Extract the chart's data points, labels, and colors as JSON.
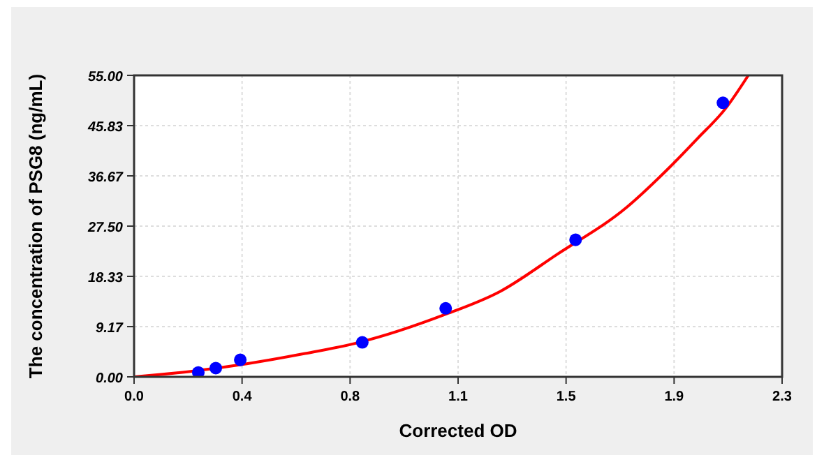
{
  "chart_data": {
    "type": "scatter",
    "xlabel": "Corrected OD",
    "ylabel": "The concentration of PSG8 (ng/mL)",
    "xlim": [
      0,
      2.3
    ],
    "xticks": [
      {
        "value": 0,
        "label": "0.0"
      },
      {
        "value": 0.3833,
        "label": "0.4"
      },
      {
        "value": 0.7667,
        "label": "0.8"
      },
      {
        "value": 1.15,
        "label": "1.1"
      },
      {
        "value": 1.5333,
        "label": "1.5"
      },
      {
        "value": 1.9167,
        "label": "1.9"
      },
      {
        "value": 2.3,
        "label": "2.3"
      }
    ],
    "ylim": [
      0,
      55
    ],
    "yticks": [
      {
        "value": 0,
        "label": "0.00"
      },
      9.17,
      18.33,
      {
        "value": 27.5,
        "label": "27.50"
      },
      36.67,
      45.83,
      {
        "value": 55,
        "label": "55.00"
      }
    ],
    "grid": true,
    "marker": "circle",
    "series": [
      {
        "type": "line",
        "color": "#ff0000",
        "marker": "none",
        "x": [
          0,
          0.2,
          0.4,
          0.6,
          0.8,
          1.1,
          1.3,
          1.5,
          1.75,
          1.9,
          2.0,
          2.1,
          2.18
        ],
        "values": [
          0,
          1.0,
          2.4,
          4.2,
          6.3,
          11.3,
          15.6,
          22.3,
          31,
          38.2,
          43.5,
          49,
          55
        ]
      },
      {
        "color": "#0000ff",
        "x": [
          0.228,
          0.29,
          0.377,
          0.81,
          1.106,
          1.567,
          2.09
        ],
        "values": [
          0.8,
          1.6,
          3.1,
          6.3,
          12.5,
          25,
          50
        ]
      }
    ]
  }
}
